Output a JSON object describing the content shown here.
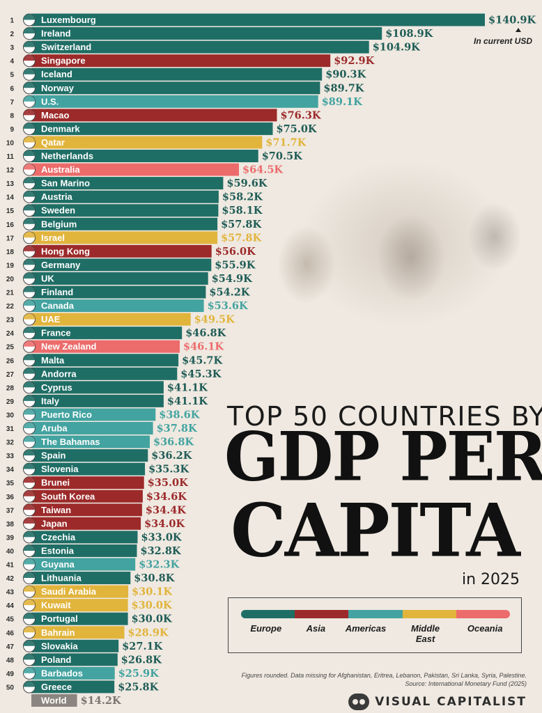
{
  "title": {
    "line1": "TOP 50 COUNTRIES BY",
    "line2": "GDP PER",
    "line3": "CAPITA",
    "subtitle": "in 2025"
  },
  "unit_note": "In current USD",
  "colors": {
    "Europe": "#1f6e66",
    "Asia": "#9c2a2a",
    "Americas": "#43a3a0",
    "Middle East": "#e1b43c",
    "Oceania": "#ec6b6b",
    "World": "#8a8580"
  },
  "legend": {
    "items": [
      {
        "key": "Europe",
        "label": "Europe"
      },
      {
        "key": "Asia",
        "label": "Asia"
      },
      {
        "key": "Americas",
        "label": "Americas"
      },
      {
        "key": "Middle East",
        "label": "Middle East"
      },
      {
        "key": "Oceania",
        "label": "Oceania"
      }
    ]
  },
  "footnote": {
    "line1": "Figures rounded. Data missing for Afghanistan, Eritrea, Lebanon, Pakistan, Sri Lanka, Syria, Palestine.",
    "line2": "Source: International Monetary Fund (2025)"
  },
  "brand": "VISUAL CAPITALIST",
  "chart_data": {
    "type": "bar",
    "orientation": "horizontal",
    "value_unit": "USD thousands",
    "rows": [
      {
        "rank": "1",
        "country": "Luxembourg",
        "value": 140.9,
        "label": "$140.9K",
        "region": "Europe"
      },
      {
        "rank": "2",
        "country": "Ireland",
        "value": 108.9,
        "label": "$108.9K",
        "region": "Europe"
      },
      {
        "rank": "3",
        "country": "Switzerland",
        "value": 104.9,
        "label": "$104.9K",
        "region": "Europe"
      },
      {
        "rank": "4",
        "country": "Singapore",
        "value": 92.9,
        "label": "$92.9K",
        "region": "Asia"
      },
      {
        "rank": "5",
        "country": "Iceland",
        "value": 90.3,
        "label": "$90.3K",
        "region": "Europe"
      },
      {
        "rank": "6",
        "country": "Norway",
        "value": 89.7,
        "label": "$89.7K",
        "region": "Europe"
      },
      {
        "rank": "7",
        "country": "U.S.",
        "value": 89.1,
        "label": "$89.1K",
        "region": "Americas"
      },
      {
        "rank": "8",
        "country": "Macao",
        "value": 76.3,
        "label": "$76.3K",
        "region": "Asia"
      },
      {
        "rank": "9",
        "country": "Denmark",
        "value": 75.0,
        "label": "$75.0K",
        "region": "Europe"
      },
      {
        "rank": "10",
        "country": "Qatar",
        "value": 71.7,
        "label": "$71.7K",
        "region": "Middle East"
      },
      {
        "rank": "11",
        "country": "Netherlands",
        "value": 70.5,
        "label": "$70.5K",
        "region": "Europe"
      },
      {
        "rank": "12",
        "country": "Australia",
        "value": 64.5,
        "label": "$64.5K",
        "region": "Oceania"
      },
      {
        "rank": "13",
        "country": "San Marino",
        "value": 59.6,
        "label": "$59.6K",
        "region": "Europe"
      },
      {
        "rank": "14",
        "country": "Austria",
        "value": 58.2,
        "label": "$58.2K",
        "region": "Europe"
      },
      {
        "rank": "15",
        "country": "Sweden",
        "value": 58.1,
        "label": "$58.1K",
        "region": "Europe"
      },
      {
        "rank": "16",
        "country": "Belgium",
        "value": 57.8,
        "label": "$57.8K",
        "region": "Europe"
      },
      {
        "rank": "17",
        "country": "Israel",
        "value": 57.8,
        "label": "$57.8K",
        "region": "Middle East"
      },
      {
        "rank": "18",
        "country": "Hong Kong",
        "value": 56.0,
        "label": "$56.0K",
        "region": "Asia"
      },
      {
        "rank": "19",
        "country": "Germany",
        "value": 55.9,
        "label": "$55.9K",
        "region": "Europe"
      },
      {
        "rank": "20",
        "country": "UK",
        "value": 54.9,
        "label": "$54.9K",
        "region": "Europe"
      },
      {
        "rank": "21",
        "country": "Finland",
        "value": 54.2,
        "label": "$54.2K",
        "region": "Europe"
      },
      {
        "rank": "22",
        "country": "Canada",
        "value": 53.6,
        "label": "$53.6K",
        "region": "Americas"
      },
      {
        "rank": "23",
        "country": "UAE",
        "value": 49.5,
        "label": "$49.5K",
        "region": "Middle East"
      },
      {
        "rank": "24",
        "country": "France",
        "value": 46.8,
        "label": "$46.8K",
        "region": "Europe"
      },
      {
        "rank": "25",
        "country": "New Zealand",
        "value": 46.1,
        "label": "$46.1K",
        "region": "Oceania"
      },
      {
        "rank": "26",
        "country": "Malta",
        "value": 45.7,
        "label": "$45.7K",
        "region": "Europe"
      },
      {
        "rank": "27",
        "country": "Andorra",
        "value": 45.3,
        "label": "$45.3K",
        "region": "Europe"
      },
      {
        "rank": "28",
        "country": "Cyprus",
        "value": 41.1,
        "label": "$41.1K",
        "region": "Europe"
      },
      {
        "rank": "29",
        "country": "Italy",
        "value": 41.1,
        "label": "$41.1K",
        "region": "Europe"
      },
      {
        "rank": "30",
        "country": "Puerto Rico",
        "value": 38.6,
        "label": "$38.6K",
        "region": "Americas"
      },
      {
        "rank": "31",
        "country": "Aruba",
        "value": 37.8,
        "label": "$37.8K",
        "region": "Americas"
      },
      {
        "rank": "32",
        "country": "The Bahamas",
        "value": 36.8,
        "label": "$36.8K",
        "region": "Americas"
      },
      {
        "rank": "33",
        "country": "Spain",
        "value": 36.2,
        "label": "$36.2K",
        "region": "Europe"
      },
      {
        "rank": "34",
        "country": "Slovenia",
        "value": 35.3,
        "label": "$35.3K",
        "region": "Europe"
      },
      {
        "rank": "35",
        "country": "Brunei",
        "value": 35.0,
        "label": "$35.0K",
        "region": "Asia"
      },
      {
        "rank": "36",
        "country": "South Korea",
        "value": 34.6,
        "label": "$34.6K",
        "region": "Asia"
      },
      {
        "rank": "37",
        "country": "Taiwan",
        "value": 34.4,
        "label": "$34.4K",
        "region": "Asia"
      },
      {
        "rank": "38",
        "country": "Japan",
        "value": 34.0,
        "label": "$34.0K",
        "region": "Asia"
      },
      {
        "rank": "39",
        "country": "Czechia",
        "value": 33.0,
        "label": "$33.0K",
        "region": "Europe"
      },
      {
        "rank": "40",
        "country": "Estonia",
        "value": 32.8,
        "label": "$32.8K",
        "region": "Europe"
      },
      {
        "rank": "41",
        "country": "Guyana",
        "value": 32.3,
        "label": "$32.3K",
        "region": "Americas"
      },
      {
        "rank": "42",
        "country": "Lithuania",
        "value": 30.8,
        "label": "$30.8K",
        "region": "Europe"
      },
      {
        "rank": "43",
        "country": "Saudi Arabia",
        "value": 30.1,
        "label": "$30.1K",
        "region": "Middle East"
      },
      {
        "rank": "44",
        "country": "Kuwait",
        "value": 30.0,
        "label": "$30.0K",
        "region": "Middle East"
      },
      {
        "rank": "45",
        "country": "Portugal",
        "value": 30.0,
        "label": "$30.0K",
        "region": "Europe"
      },
      {
        "rank": "46",
        "country": "Bahrain",
        "value": 28.9,
        "label": "$28.9K",
        "region": "Middle East"
      },
      {
        "rank": "47",
        "country": "Slovakia",
        "value": 27.1,
        "label": "$27.1K",
        "region": "Europe"
      },
      {
        "rank": "48",
        "country": "Poland",
        "value": 26.8,
        "label": "$26.8K",
        "region": "Europe"
      },
      {
        "rank": "49",
        "country": "Barbados",
        "value": 25.9,
        "label": "$25.9K",
        "region": "Americas"
      },
      {
        "rank": "50",
        "country": "Greece",
        "value": 25.8,
        "label": "$25.8K",
        "region": "Europe"
      },
      {
        "rank": "",
        "country": "World",
        "value": 14.2,
        "label": "$14.2K",
        "region": "World"
      }
    ]
  }
}
